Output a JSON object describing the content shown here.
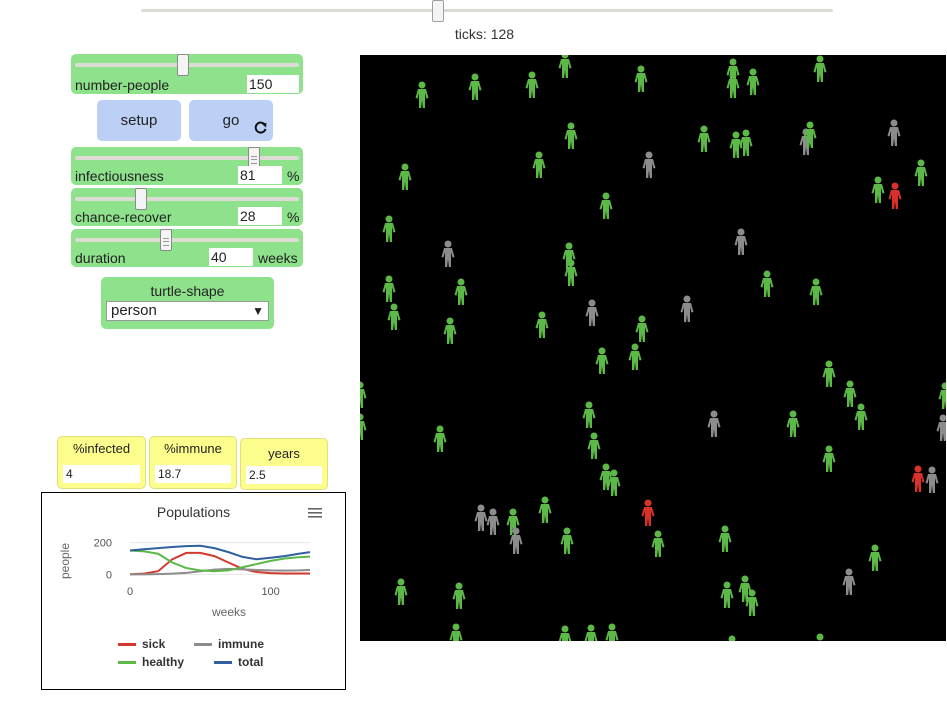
{
  "speed": {
    "ticks_label": "ticks: 128"
  },
  "sliders": [
    {
      "label": "number-people",
      "value": "150",
      "unit": "",
      "level": 0.5
    },
    {
      "label": "infectiousness",
      "value": "81",
      "unit": "%",
      "level": 0.81
    },
    {
      "label": "chance-recover",
      "value": "28",
      "unit": "%",
      "level": 0.28
    },
    {
      "label": "duration",
      "value": "40",
      "unit": "weeks",
      "level": 0.4
    }
  ],
  "buttons": {
    "setup": "setup",
    "go": "go",
    "go_icon": "forever-icon"
  },
  "chooser": {
    "label": "turtle-shape",
    "value": "person"
  },
  "monitors": [
    {
      "label": "%infected",
      "value": "4"
    },
    {
      "label": "%immune",
      "value": "18.7"
    },
    {
      "label": "years",
      "value": "2.5"
    }
  ],
  "plot": {
    "menu_icon": "hamburger-menu-icon",
    "legend": [
      {
        "name": "sick",
        "color": "#d33a2f"
      },
      {
        "name": "immune",
        "color": "#8c8c8c"
      },
      {
        "name": "healthy",
        "color": "#5cb847"
      },
      {
        "name": "total",
        "color": "#2f5f9e"
      }
    ],
    "chart_data": {
      "type": "line",
      "title": "Populations",
      "xlabel": "weeks",
      "ylabel": "people",
      "x_ticks": [
        "0",
        "100"
      ],
      "y_ticks": [
        "0",
        "200"
      ],
      "xlim": [
        0,
        128
      ],
      "ylim": [
        -10,
        210
      ],
      "series": [
        {
          "name": "sick",
          "color": "#d33a2f",
          "x": [
            0,
            10,
            20,
            30,
            40,
            50,
            60,
            70,
            80,
            90,
            100,
            110,
            120,
            128
          ],
          "values": [
            1,
            5,
            20,
            95,
            135,
            135,
            115,
            75,
            35,
            15,
            8,
            6,
            6,
            6
          ]
        },
        {
          "name": "immune",
          "color": "#8c8c8c",
          "x": [
            0,
            10,
            20,
            30,
            40,
            50,
            60,
            70,
            80,
            90,
            100,
            110,
            120,
            128
          ],
          "values": [
            0,
            0,
            2,
            5,
            10,
            20,
            30,
            35,
            32,
            28,
            25,
            24,
            25,
            28
          ]
        },
        {
          "name": "healthy",
          "color": "#5cb847",
          "x": [
            0,
            10,
            20,
            30,
            40,
            50,
            60,
            70,
            80,
            90,
            100,
            110,
            120,
            128
          ],
          "values": [
            150,
            145,
            130,
            75,
            40,
            25,
            20,
            25,
            45,
            65,
            85,
            100,
            108,
            112
          ]
        },
        {
          "name": "total",
          "color": "#2f5f9e",
          "x": [
            0,
            10,
            20,
            30,
            40,
            50,
            60,
            70,
            80,
            90,
            100,
            110,
            120,
            128
          ],
          "values": [
            150,
            158,
            165,
            172,
            178,
            180,
            165,
            140,
            110,
            95,
            105,
            115,
            130,
            140
          ]
        }
      ]
    }
  },
  "view": {
    "colors": {
      "healthy": "#5cb847",
      "immune": "#8c8c8c",
      "sick": "#d9322a"
    }
  }
}
